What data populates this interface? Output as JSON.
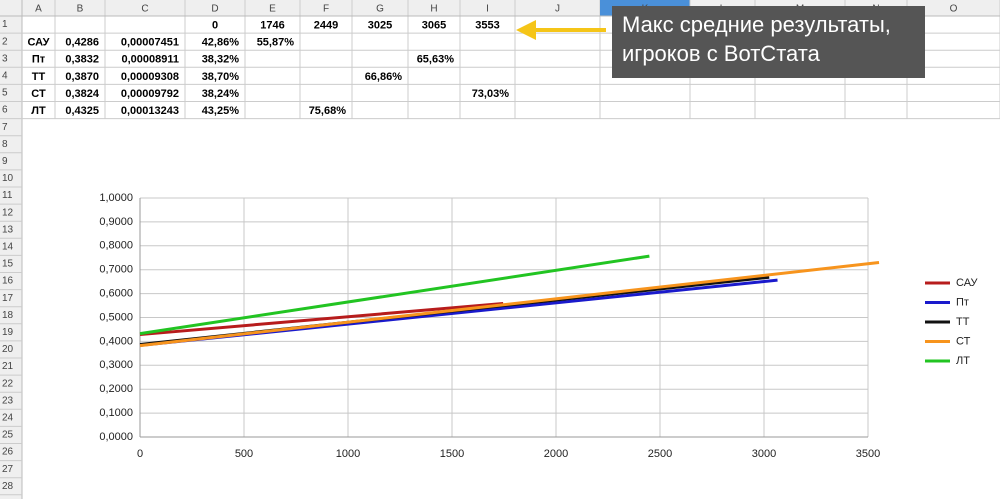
{
  "sheet": {
    "columns": [
      "A",
      "B",
      "C",
      "D",
      "E",
      "F",
      "G",
      "H",
      "I",
      "J",
      "K",
      "L",
      "M",
      "N",
      "O"
    ],
    "row_numbers": [
      1,
      2,
      3,
      4,
      5,
      6,
      7,
      8,
      9,
      10,
      11,
      12,
      13,
      14,
      15,
      16,
      17,
      18,
      19,
      20,
      21,
      22,
      23,
      24,
      25,
      26,
      27,
      28
    ],
    "cells": {
      "1": {
        "D": "0",
        "E": "1746",
        "F": "2449",
        "G": "3025",
        "H": "3065",
        "I": "3553"
      },
      "2": {
        "A": "САУ",
        "B": "0,4286",
        "C": "0,00007451",
        "D": "42,86%",
        "E": "55,87%"
      },
      "3": {
        "A": "Пт",
        "B": "0,3832",
        "C": "0,00008911",
        "D": "38,32%",
        "H": "65,63%"
      },
      "4": {
        "A": "ТТ",
        "B": "0,3870",
        "C": "0,00009308",
        "D": "38,70%",
        "G": "66,86%"
      },
      "5": {
        "A": "СТ",
        "B": "0,3824",
        "C": "0,00009792",
        "D": "38,24%",
        "I": "73,03%"
      },
      "6": {
        "A": "ЛТ",
        "B": "0,4325",
        "C": "0,00013243",
        "D": "43,25%",
        "F": "75,68%"
      }
    }
  },
  "callout": "Макс средние результаты, игроков с ВотСтата",
  "chart_data": {
    "type": "line",
    "series": [
      {
        "name": "САУ",
        "color": "#b71c1c",
        "x": [
          0,
          1746
        ],
        "values": [
          0.4286,
          0.5587
        ]
      },
      {
        "name": "Пт",
        "color": "#1a1acc",
        "x": [
          0,
          3065
        ],
        "values": [
          0.3832,
          0.6563
        ]
      },
      {
        "name": "ТТ",
        "color": "#111111",
        "x": [
          0,
          3025
        ],
        "values": [
          0.387,
          0.6686
        ]
      },
      {
        "name": "СТ",
        "color": "#f7941d",
        "x": [
          0,
          3553
        ],
        "values": [
          0.3824,
          0.7303
        ]
      },
      {
        "name": "ЛТ",
        "color": "#22c422",
        "x": [
          0,
          2449
        ],
        "values": [
          0.4325,
          0.7568
        ]
      }
    ],
    "xlim": [
      0,
      3500
    ],
    "xticks": [
      0,
      500,
      1000,
      1500,
      2000,
      2500,
      3000,
      3500
    ],
    "ylim": [
      0,
      1
    ],
    "yticks": [
      {
        "value": 0,
        "label": "0,0000"
      },
      {
        "value": 0.1,
        "label": "0,1000"
      },
      {
        "value": 0.2,
        "label": "0,2000"
      },
      {
        "value": 0.3,
        "label": "0,3000"
      },
      {
        "value": 0.4,
        "label": "0,4000"
      },
      {
        "value": 0.5,
        "label": "0,5000"
      },
      {
        "value": 0.6,
        "label": "0,6000"
      },
      {
        "value": 0.7,
        "label": "0,7000"
      },
      {
        "value": 0.8,
        "label": "0,8000"
      },
      {
        "value": 0.9,
        "label": "0,9000"
      },
      {
        "value": 1,
        "label": "1,0000"
      }
    ],
    "grid": true,
    "legend": "right"
  }
}
